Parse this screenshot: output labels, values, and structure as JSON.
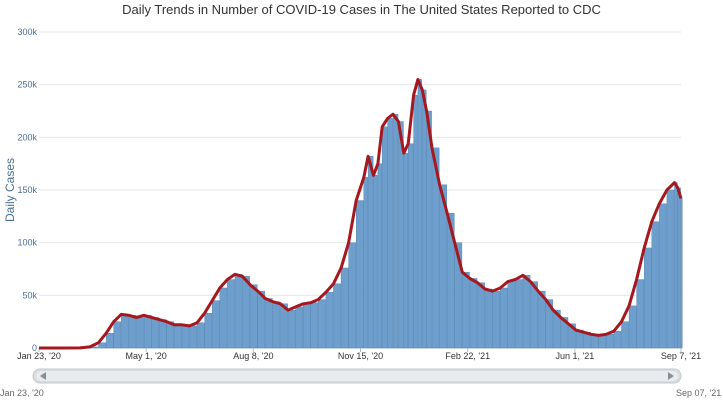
{
  "header": {
    "title": "Daily Trends in Number of COVID-19 Cases in The United States Reported to CDC"
  },
  "colors": {
    "bars": "#6e9ecb",
    "bars_edge": "#4f7fb0",
    "average_line": "#a5181f",
    "axis_text": "#4a6f95",
    "grid": "#e6e6e6",
    "navigator": "#d9dde3"
  },
  "navigator": {
    "start_label": "Jan 23, '20",
    "end_label": "Sep 07, '21"
  },
  "chart_data": {
    "type": "bar",
    "title": "Daily Trends in Number of COVID-19 Cases in The United States Reported to CDC",
    "xlabel": "",
    "ylabel": "Daily Cases",
    "x_range": [
      "2020-01-23",
      "2021-09-07"
    ],
    "ylim": [
      0,
      300000
    ],
    "grid": "horizontal",
    "y_ticks": [
      {
        "value": 0,
        "label": "0"
      },
      {
        "value": 50000,
        "label": "50k"
      },
      {
        "value": 100000,
        "label": "100k"
      },
      {
        "value": 150000,
        "label": "150k"
      },
      {
        "value": 200000,
        "label": "200k"
      },
      {
        "value": 250000,
        "label": "250k"
      },
      {
        "value": 300000,
        "label": "300k"
      }
    ],
    "x_ticks": [
      {
        "date": "2020-01-23",
        "label": "Jan 23, '20"
      },
      {
        "date": "2020-05-01",
        "label": "May 1, '20"
      },
      {
        "date": "2020-08-08",
        "label": "Aug 8, '20"
      },
      {
        "date": "2020-11-15",
        "label": "Nov 15, '20"
      },
      {
        "date": "2021-02-22",
        "label": "Feb 22, '21"
      },
      {
        "date": "2021-06-01",
        "label": "Jun 1, '21"
      },
      {
        "date": "2021-09-07",
        "label": "Sep 7, '21"
      }
    ],
    "series": [
      {
        "kind": "bars",
        "points": [
          [
            "2020-01-23",
            0
          ],
          [
            "2020-02-15",
            0
          ],
          [
            "2020-03-01",
            100
          ],
          [
            "2020-03-10",
            1000
          ],
          [
            "2020-03-18",
            5000
          ],
          [
            "2020-03-25",
            14000
          ],
          [
            "2020-04-01",
            25000
          ],
          [
            "2020-04-08",
            32000
          ],
          [
            "2020-04-15",
            31000
          ],
          [
            "2020-04-22",
            29000
          ],
          [
            "2020-04-29",
            31000
          ],
          [
            "2020-05-06",
            29000
          ],
          [
            "2020-05-13",
            27000
          ],
          [
            "2020-05-20",
            25000
          ],
          [
            "2020-05-27",
            22000
          ],
          [
            "2020-06-03",
            22000
          ],
          [
            "2020-06-10",
            21000
          ],
          [
            "2020-06-17",
            24000
          ],
          [
            "2020-06-24",
            33000
          ],
          [
            "2020-07-01",
            45000
          ],
          [
            "2020-07-08",
            57000
          ],
          [
            "2020-07-15",
            65000
          ],
          [
            "2020-07-22",
            70000
          ],
          [
            "2020-07-29",
            68000
          ],
          [
            "2020-08-05",
            60000
          ],
          [
            "2020-08-12",
            54000
          ],
          [
            "2020-08-19",
            47000
          ],
          [
            "2020-08-26",
            44000
          ],
          [
            "2020-09-02",
            42000
          ],
          [
            "2020-09-09",
            36000
          ],
          [
            "2020-09-16",
            39000
          ],
          [
            "2020-09-23",
            42000
          ],
          [
            "2020-09-30",
            43000
          ],
          [
            "2020-10-07",
            46000
          ],
          [
            "2020-10-14",
            53000
          ],
          [
            "2020-10-21",
            61000
          ],
          [
            "2020-10-28",
            76000
          ],
          [
            "2020-11-04",
            100000
          ],
          [
            "2020-11-11",
            140000
          ],
          [
            "2020-11-18",
            162000
          ],
          [
            "2020-11-22",
            182000
          ],
          [
            "2020-11-27",
            164000
          ],
          [
            "2020-12-01",
            175000
          ],
          [
            "2020-12-05",
            210000
          ],
          [
            "2020-12-10",
            218000
          ],
          [
            "2020-12-15",
            222000
          ],
          [
            "2020-12-20",
            215000
          ],
          [
            "2020-12-25",
            185000
          ],
          [
            "2020-12-29",
            194000
          ],
          [
            "2021-01-03",
            240000
          ],
          [
            "2021-01-07",
            255000
          ],
          [
            "2021-01-11",
            245000
          ],
          [
            "2021-01-15",
            225000
          ],
          [
            "2021-01-20",
            190000
          ],
          [
            "2021-01-27",
            155000
          ],
          [
            "2021-02-03",
            128000
          ],
          [
            "2021-02-10",
            100000
          ],
          [
            "2021-02-17",
            72000
          ],
          [
            "2021-02-24",
            66000
          ],
          [
            "2021-03-03",
            62000
          ],
          [
            "2021-03-10",
            56000
          ],
          [
            "2021-03-17",
            54000
          ],
          [
            "2021-03-24",
            57000
          ],
          [
            "2021-03-31",
            63000
          ],
          [
            "2021-04-07",
            65000
          ],
          [
            "2021-04-14",
            69000
          ],
          [
            "2021-04-21",
            63000
          ],
          [
            "2021-04-28",
            54000
          ],
          [
            "2021-05-05",
            46000
          ],
          [
            "2021-05-12",
            36000
          ],
          [
            "2021-05-19",
            29000
          ],
          [
            "2021-05-26",
            23000
          ],
          [
            "2021-06-02",
            17000
          ],
          [
            "2021-06-09",
            15000
          ],
          [
            "2021-06-16",
            13000
          ],
          [
            "2021-06-23",
            12000
          ],
          [
            "2021-06-30",
            13000
          ],
          [
            "2021-07-07",
            16000
          ],
          [
            "2021-07-14",
            25000
          ],
          [
            "2021-07-21",
            40000
          ],
          [
            "2021-07-28",
            65000
          ],
          [
            "2021-08-04",
            95000
          ],
          [
            "2021-08-11",
            120000
          ],
          [
            "2021-08-18",
            137000
          ],
          [
            "2021-08-25",
            150000
          ],
          [
            "2021-09-01",
            157000
          ],
          [
            "2021-09-04",
            152000
          ],
          [
            "2021-09-07",
            142000
          ]
        ]
      },
      {
        "kind": "line",
        "points": [
          [
            "2020-01-23",
            0
          ],
          [
            "2020-02-15",
            0
          ],
          [
            "2020-03-01",
            100
          ],
          [
            "2020-03-10",
            1000
          ],
          [
            "2020-03-18",
            5000
          ],
          [
            "2020-03-25",
            14000
          ],
          [
            "2020-04-01",
            25000
          ],
          [
            "2020-04-08",
            32000
          ],
          [
            "2020-04-15",
            31000
          ],
          [
            "2020-04-22",
            29000
          ],
          [
            "2020-04-29",
            31000
          ],
          [
            "2020-05-06",
            29000
          ],
          [
            "2020-05-13",
            27000
          ],
          [
            "2020-05-20",
            25000
          ],
          [
            "2020-05-27",
            22000
          ],
          [
            "2020-06-03",
            22000
          ],
          [
            "2020-06-10",
            21000
          ],
          [
            "2020-06-17",
            24000
          ],
          [
            "2020-06-24",
            33000
          ],
          [
            "2020-07-01",
            45000
          ],
          [
            "2020-07-08",
            57000
          ],
          [
            "2020-07-15",
            65000
          ],
          [
            "2020-07-22",
            70000
          ],
          [
            "2020-07-29",
            68000
          ],
          [
            "2020-08-05",
            60000
          ],
          [
            "2020-08-12",
            54000
          ],
          [
            "2020-08-19",
            47000
          ],
          [
            "2020-08-26",
            44000
          ],
          [
            "2020-09-02",
            42000
          ],
          [
            "2020-09-09",
            36000
          ],
          [
            "2020-09-16",
            39000
          ],
          [
            "2020-09-23",
            42000
          ],
          [
            "2020-09-30",
            43000
          ],
          [
            "2020-10-07",
            46000
          ],
          [
            "2020-10-14",
            53000
          ],
          [
            "2020-10-21",
            61000
          ],
          [
            "2020-10-28",
            76000
          ],
          [
            "2020-11-04",
            100000
          ],
          [
            "2020-11-11",
            140000
          ],
          [
            "2020-11-18",
            162000
          ],
          [
            "2020-11-22",
            182000
          ],
          [
            "2020-11-27",
            164000
          ],
          [
            "2020-12-01",
            175000
          ],
          [
            "2020-12-05",
            210000
          ],
          [
            "2020-12-10",
            218000
          ],
          [
            "2020-12-15",
            222000
          ],
          [
            "2020-12-20",
            215000
          ],
          [
            "2020-12-25",
            185000
          ],
          [
            "2020-12-29",
            194000
          ],
          [
            "2021-01-03",
            240000
          ],
          [
            "2021-01-07",
            255000
          ],
          [
            "2021-01-11",
            245000
          ],
          [
            "2021-01-15",
            225000
          ],
          [
            "2021-01-20",
            190000
          ],
          [
            "2021-01-27",
            155000
          ],
          [
            "2021-02-03",
            128000
          ],
          [
            "2021-02-10",
            100000
          ],
          [
            "2021-02-17",
            72000
          ],
          [
            "2021-02-24",
            66000
          ],
          [
            "2021-03-03",
            62000
          ],
          [
            "2021-03-10",
            56000
          ],
          [
            "2021-03-17",
            54000
          ],
          [
            "2021-03-24",
            57000
          ],
          [
            "2021-03-31",
            63000
          ],
          [
            "2021-04-07",
            65000
          ],
          [
            "2021-04-14",
            69000
          ],
          [
            "2021-04-21",
            63000
          ],
          [
            "2021-04-28",
            54000
          ],
          [
            "2021-05-05",
            46000
          ],
          [
            "2021-05-12",
            36000
          ],
          [
            "2021-05-19",
            29000
          ],
          [
            "2021-05-26",
            23000
          ],
          [
            "2021-06-02",
            17000
          ],
          [
            "2021-06-09",
            15000
          ],
          [
            "2021-06-16",
            13000
          ],
          [
            "2021-06-23",
            12000
          ],
          [
            "2021-06-30",
            13000
          ],
          [
            "2021-07-07",
            16000
          ],
          [
            "2021-07-14",
            25000
          ],
          [
            "2021-07-21",
            40000
          ],
          [
            "2021-07-28",
            65000
          ],
          [
            "2021-08-04",
            95000
          ],
          [
            "2021-08-11",
            120000
          ],
          [
            "2021-08-18",
            137000
          ],
          [
            "2021-08-25",
            150000
          ],
          [
            "2021-09-01",
            157000
          ],
          [
            "2021-09-04",
            152000
          ],
          [
            "2021-09-07",
            142000
          ]
        ]
      }
    ]
  }
}
